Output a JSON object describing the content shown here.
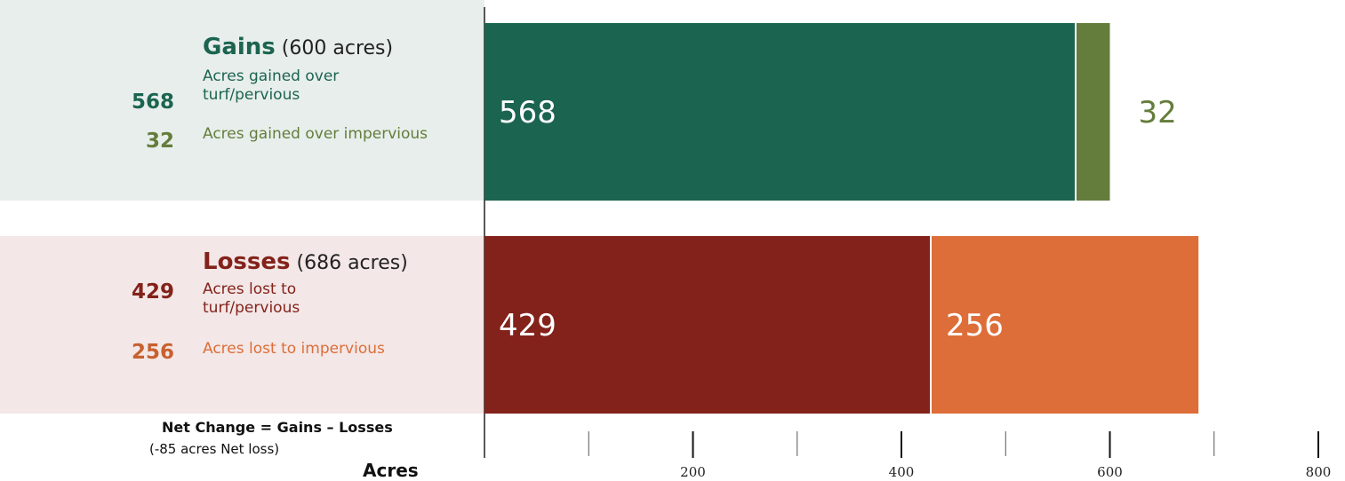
{
  "chart_data": {
    "type": "bar",
    "orientation": "horizontal",
    "stacked": true,
    "xlabel": "Acres",
    "xlim": [
      0,
      800
    ],
    "ticks_major": [
      200,
      400,
      600,
      800
    ],
    "ticks_minor": [
      100,
      300,
      500,
      700
    ],
    "tick_labels": [
      "200",
      "400",
      "600",
      "800"
    ],
    "groups": [
      {
        "name": "Gains",
        "total_label": "(600 acres)",
        "color": "#1b6450",
        "segments": [
          {
            "value": 568,
            "value_label": "568",
            "description": "Acres gained over turf/pervious",
            "color": "#1b6450",
            "label_position": "inside"
          },
          {
            "value": 32,
            "value_label": "32",
            "description": "Acres gained over impervious",
            "color": "#647d3c",
            "label_position": "outside"
          }
        ]
      },
      {
        "name": "Losses",
        "total_label": "(686 acres)",
        "color": "#83221a",
        "segments": [
          {
            "value": 429,
            "value_label": "429",
            "description": "Acres lost to turf/pervious",
            "color": "#83221a",
            "label_position": "inside"
          },
          {
            "value": 256,
            "value_label": "256",
            "description": "Acres lost to impervious",
            "color": "#dd6e39",
            "label_position": "inside"
          }
        ]
      }
    ],
    "net_change": {
      "title": "Net Change = Gains – Losses",
      "subtitle": "(-85 acres Net loss)"
    }
  }
}
